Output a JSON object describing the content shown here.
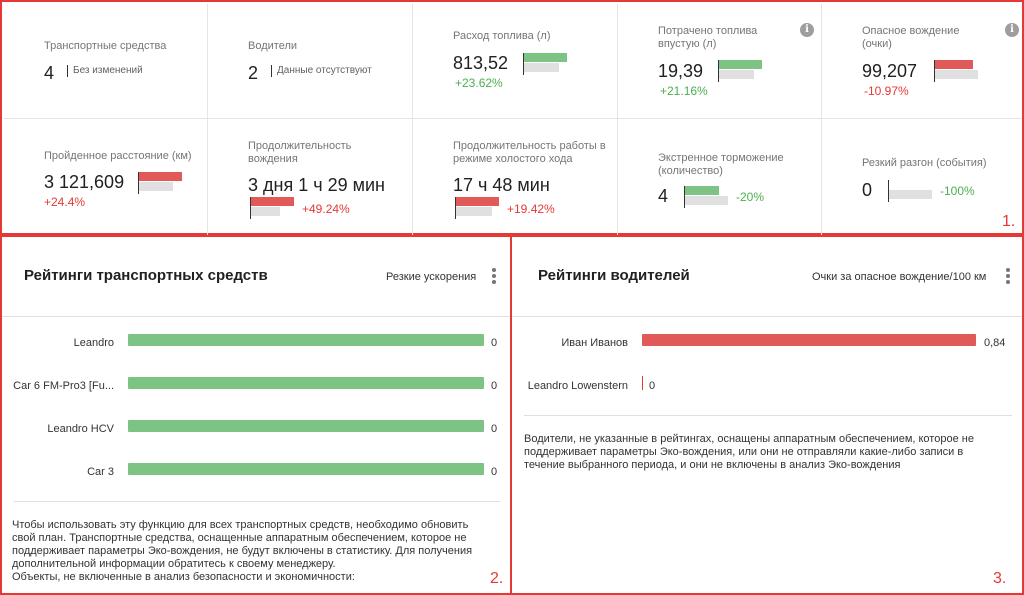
{
  "kpis": [
    {
      "label": "Транспортные средства",
      "value": "4",
      "note": "Без изменений"
    },
    {
      "label": "Водители",
      "value": "2",
      "note": "Данные отсутствуют"
    },
    {
      "label": "Расход топлива (л)",
      "value": "813,52",
      "change": "+23.62%",
      "change_dir": "up",
      "bar_current": 0.74,
      "bar_previous": 0.6
    },
    {
      "label": "Потрачено топлива впустую (л)",
      "value": "19,39",
      "change": "+21.16%",
      "change_dir": "up",
      "bar_current": 0.74,
      "bar_previous": 0.61,
      "info_icon": "info-icon"
    },
    {
      "label": "Опасное вождение (очки)",
      "value": "99,207",
      "change": "-10.97%",
      "change_dir": "down",
      "bar_current": 0.66,
      "bar_previous": 0.74,
      "info_icon": "info-icon"
    },
    {
      "label": "Пройденное расстояние (км)",
      "value": "3 121,609",
      "change": "+24.4%",
      "change_dir": "up",
      "bar_current": 0.74,
      "bar_previous": 0.58
    },
    {
      "label": "Продолжительность вождения",
      "value": "3 дня 1 ч 29 мин",
      "change": "+49.24%",
      "change_dir": "up",
      "bar_current": 0.74,
      "bar_previous": 0.5
    },
    {
      "label": "Продолжительность работы в режиме холостого хода",
      "value": "17 ч 48 мин",
      "change": "+19.42%",
      "change_dir": "up",
      "bar_current": 0.74,
      "bar_previous": 0.62
    },
    {
      "label": "Экстренное торможение (количество)",
      "value": "4",
      "change": "-20%",
      "change_dir": "down",
      "bar_current": 0.59,
      "bar_previous": 0.74
    },
    {
      "label": "Резкий разгон (события)",
      "value": "0",
      "change": "-100%",
      "change_dir": "down",
      "bar_current": 0.0,
      "bar_previous": 0.74
    }
  ],
  "colors": {
    "good": "#4caf50",
    "bad": "#e53935",
    "bar_green": "#7dc383",
    "bar_red": "#e05a5a",
    "previous": "#e0e0e0",
    "frame": "#e53935"
  },
  "region_labels": [
    "1.",
    "2.",
    "3."
  ],
  "vehicle_rankings": {
    "title": "Рейтинги транспортных средств",
    "metric": "Резкие ускорения",
    "menu_icon": "more-vert-icon",
    "rows": [
      {
        "name": "Leandro",
        "value": "0",
        "fill": 1.0
      },
      {
        "name": "Car 6 FM-Pro3 [Fu...",
        "value": "0",
        "fill": 1.0
      },
      {
        "name": "Leandro HCV",
        "value": "0",
        "fill": 1.0
      },
      {
        "name": "Car 3",
        "value": "0",
        "fill": 1.0
      }
    ],
    "note": "Чтобы использовать эту функцию для всех транспортных средств, необходимо обновить свой план. Транспортные средства, оснащенные аппаратным обеспечением, которое не поддерживает параметры Эко-вождения, не будут включены в статистику. Для получения дополнительной информации обратитесь к своему менеджеру.",
    "note_extra": "Объекты, не включенные в анализ безопасности и экономичности:"
  },
  "driver_rankings": {
    "title": "Рейтинги водителей",
    "metric": "Очки за опасное вождение/100 км",
    "menu_icon": "more-vert-icon",
    "rows": [
      {
        "name": "Иван Иванов",
        "value": "0,84",
        "fill": 1.0
      },
      {
        "name": "Leandro Lowenstern",
        "value": "0",
        "fill": 0.0
      }
    ],
    "note": "Водители, не указанные в рейтингах, оснащены аппаратным обеспечением, которое не поддерживает параметры Эко-вождения, или они не отправляли какие-либо записи в течение выбранного периода, и они не включены в анализ Эко-вождения"
  }
}
